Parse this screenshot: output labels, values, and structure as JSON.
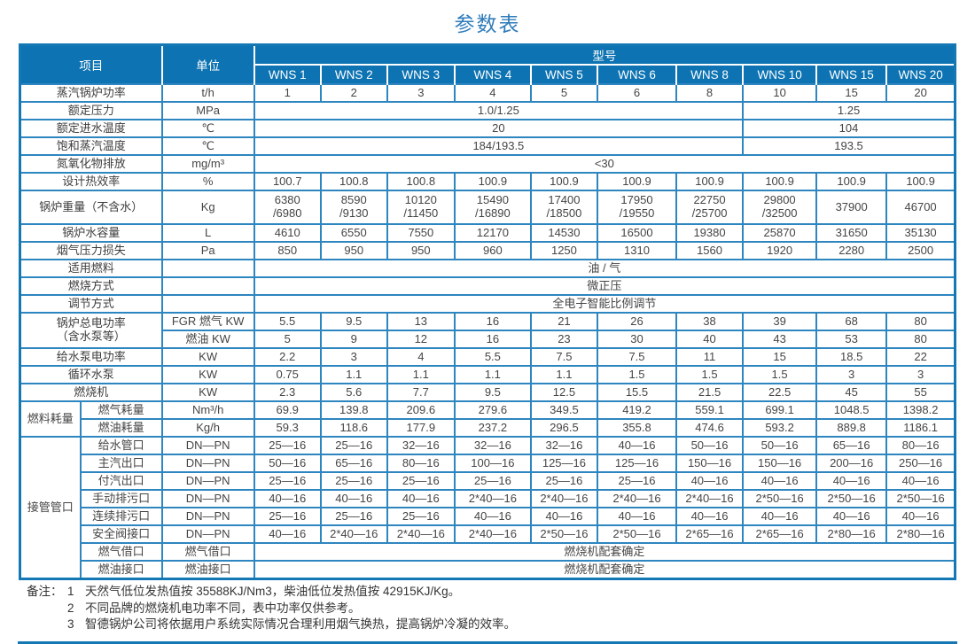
{
  "title": "参数表",
  "accent_colors": {
    "header_bg": "#0d73b2",
    "grid_border": "#2e86c0",
    "frame": "#1478b4",
    "title_text": "#2f7cba"
  },
  "table": {
    "header": {
      "item": "项目",
      "unit": "单位",
      "model": "型号",
      "models": [
        "WNS 1",
        "WNS 2",
        "WNS 3",
        "WNS 4",
        "WNS 5",
        "WNS 6",
        "WNS 8",
        "WNS 10",
        "WNS 15",
        "WNS 20"
      ]
    },
    "split_at": 7,
    "rows": [
      {
        "item": "蒸汽锅炉功率",
        "unit": "t/h",
        "cells": [
          "1",
          "2",
          "3",
          "4",
          "5",
          "6",
          "8",
          "10",
          "15",
          "20"
        ]
      },
      {
        "item": "额定压力",
        "unit": "MPa",
        "split": [
          "1.0/1.25",
          "1.25"
        ]
      },
      {
        "item": "额定进水温度",
        "unit": "℃",
        "split": [
          "20",
          "104"
        ]
      },
      {
        "item": "饱和蒸汽温度",
        "unit": "℃",
        "split": [
          "184/193.5",
          "193.5"
        ]
      },
      {
        "item": "氮氧化物排放",
        "unit": "mg/m³",
        "span": "<30"
      },
      {
        "item": "设计热效率",
        "unit": "%",
        "cells": [
          "100.7",
          "100.8",
          "100.8",
          "100.9",
          "100.9",
          "100.9",
          "100.9",
          "100.9",
          "100.9",
          "100.9"
        ]
      },
      {
        "item": "锅炉重量（不含水）",
        "unit": "Kg",
        "tall": true,
        "cells": [
          "6380\n/6980",
          "8590\n/9130",
          "10120\n/11450",
          "15490\n/16890",
          "17400\n/18500",
          "17950\n/19550",
          "22750\n/25700",
          "29800\n/32500",
          "37900",
          "46700"
        ]
      },
      {
        "item": "锅炉水容量",
        "unit": "L",
        "cells": [
          "4610",
          "6550",
          "7550",
          "12170",
          "14530",
          "16500",
          "19380",
          "25870",
          "31650",
          "35130"
        ]
      },
      {
        "item": "烟气压力损失",
        "unit": "Pa",
        "cells": [
          "850",
          "950",
          "950",
          "960",
          "1250",
          "1310",
          "1560",
          "1920",
          "2280",
          "2500"
        ]
      },
      {
        "item": "适用燃料",
        "unit": "",
        "span": "油 / 气"
      },
      {
        "item": "燃烧方式",
        "unit": "",
        "span": "微正压"
      },
      {
        "item": "调节方式",
        "unit": "",
        "span": "全电子智能比例调节"
      },
      {
        "item": "锅炉总电功率\n（含水泵等）",
        "subrows": [
          {
            "unit": "FGR 燃气 KW",
            "cells": [
              "5.5",
              "9.5",
              "13",
              "16",
              "21",
              "26",
              "38",
              "39",
              "68",
              "80"
            ]
          },
          {
            "unit": "燃油 KW",
            "cells": [
              "5",
              "9",
              "12",
              "16",
              "23",
              "30",
              "40",
              "43",
              "53",
              "80"
            ]
          }
        ]
      },
      {
        "item": "给水泵电功率",
        "unit": "KW",
        "cells": [
          "2.2",
          "3",
          "4",
          "5.5",
          "7.5",
          "7.5",
          "11",
          "15",
          "18.5",
          "22"
        ]
      },
      {
        "item": "循环水泵",
        "unit": "KW",
        "cells": [
          "0.75",
          "1.1",
          "1.1",
          "1.1",
          "1.1",
          "1.5",
          "1.5",
          "1.5",
          "3",
          "3"
        ]
      },
      {
        "item": "燃烧机",
        "unit": "KW",
        "cells": [
          "2.3",
          "5.6",
          "7.7",
          "9.5",
          "12.5",
          "15.5",
          "21.5",
          "22.5",
          "45",
          "55"
        ]
      },
      {
        "group": "燃料耗量",
        "subrows": [
          {
            "sub": "燃气耗量",
            "unit": "Nm³/h",
            "cells": [
              "69.9",
              "139.8",
              "209.6",
              "279.6",
              "349.5",
              "419.2",
              "559.1",
              "699.1",
              "1048.5",
              "1398.2"
            ]
          },
          {
            "sub": "燃油耗量",
            "unit": "Kg/h",
            "cells": [
              "59.3",
              "118.6",
              "177.9",
              "237.2",
              "296.5",
              "355.8",
              "474.6",
              "593.2",
              "889.8",
              "1186.1"
            ]
          }
        ]
      },
      {
        "group": "接管管口",
        "subrows": [
          {
            "sub": "给水管口",
            "unit": "DN—PN",
            "cells": [
              "25—16",
              "25—16",
              "32—16",
              "32—16",
              "32—16",
              "40—16",
              "50—16",
              "50—16",
              "65—16",
              "80—16"
            ]
          },
          {
            "sub": "主汽出口",
            "unit": "DN—PN",
            "cells": [
              "50—16",
              "65—16",
              "80—16",
              "100—16",
              "125—16",
              "125—16",
              "150—16",
              "150—16",
              "200—16",
              "250—16"
            ]
          },
          {
            "sub": "付汽出口",
            "unit": "DN—PN",
            "cells": [
              "25—16",
              "25—16",
              "25—16",
              "25—16",
              "25—16",
              "25—16",
              "40—16",
              "40—16",
              "40—16",
              "40—16"
            ]
          },
          {
            "sub": "手动排污口",
            "unit": "DN—PN",
            "cells": [
              "40—16",
              "40—16",
              "40—16",
              "2*40—16",
              "2*40—16",
              "2*40—16",
              "2*40—16",
              "2*50—16",
              "2*50—16",
              "2*50—16"
            ]
          },
          {
            "sub": "连续排污口",
            "unit": "DN—PN",
            "cells": [
              "25—16",
              "25—16",
              "25—16",
              "40—16",
              "40—16",
              "40—16",
              "40—16",
              "40—16",
              "40—16",
              "40—16"
            ]
          },
          {
            "sub": "安全阀接口",
            "unit": "DN—PN",
            "cells": [
              "40—16",
              "2*40—16",
              "2*40—16",
              "2*40—16",
              "2*50—16",
              "2*50—16",
              "2*65—16",
              "2*65—16",
              "2*80—16",
              "2*80—16"
            ]
          },
          {
            "sub": "燃气借口",
            "unit": "燃气借口",
            "span": "燃烧机配套确定"
          },
          {
            "sub": "燃油接口",
            "unit": "燃油接口",
            "span": "燃烧机配套确定"
          }
        ]
      }
    ]
  },
  "notes": {
    "label": "备注：",
    "items": [
      {
        "num": "1",
        "text": "天然气低位发热值按 35588KJ/Nm3，柴油低位发热值按 42915KJ/Kg。"
      },
      {
        "num": "2",
        "text": "不同品牌的燃烧机电功率不同，表中功率仅供参考。"
      },
      {
        "num": "3",
        "text": "智德锅炉公司将依据用户系统实际情况合理利用烟气换热，提高锅炉冷凝的效率。"
      }
    ]
  }
}
